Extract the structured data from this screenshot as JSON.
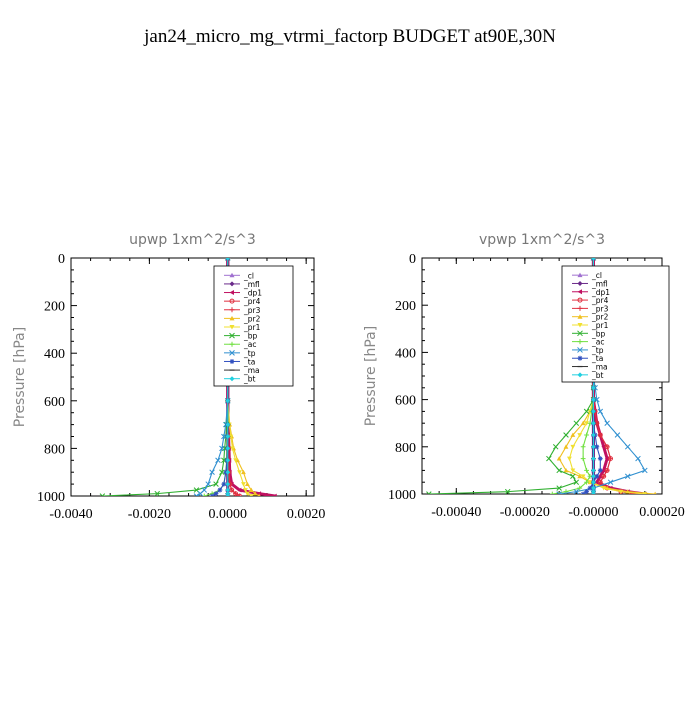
{
  "figure": {
    "title": "jan24_micro_mg_vtrmi_factorp  BUDGET at90E,30N"
  },
  "legend_entries": [
    {
      "label": "_cl",
      "color": "#a070d0",
      "marker": "triangle"
    },
    {
      "label": "_mfl",
      "color": "#6a2a8a",
      "marker": "diamond"
    },
    {
      "label": "_dp1",
      "color": "#c01060",
      "marker": "triangle-left"
    },
    {
      "label": "_pr4",
      "color": "#e03040",
      "marker": "circle"
    },
    {
      "label": "_pr3",
      "color": "#e03040",
      "marker": "plus"
    },
    {
      "label": "_pr2",
      "color": "#f0c020",
      "marker": "triangle"
    },
    {
      "label": "_pr1",
      "color": "#f0e030",
      "marker": "triangle-down"
    },
    {
      "label": "_bp",
      "color": "#30b030",
      "marker": "x"
    },
    {
      "label": "_ac",
      "color": "#70e040",
      "marker": "plus"
    },
    {
      "label": "_tp",
      "color": "#3090d0",
      "marker": "x"
    },
    {
      "label": "_ta",
      "color": "#3050c0",
      "marker": "star"
    },
    {
      "label": "_ma",
      "color": "#303030",
      "marker": "dash"
    },
    {
      "label": "_bt",
      "color": "#20d0e0",
      "marker": "diamond"
    }
  ],
  "chart_data": [
    {
      "type": "line",
      "title": "upwp   1xm^2/s^3",
      "ylabel": "Pressure  [hPa]",
      "xlabel": "",
      "xlim": [
        -0.004,
        0.0022
      ],
      "ylim": [
        1000,
        0
      ],
      "xticks": [
        -0.004,
        -0.002,
        0.0,
        0.002
      ],
      "xtick_labels": [
        "-0.0040",
        "-0.0020",
        "0.0000",
        "0.0020"
      ],
      "yticks": [
        0,
        200,
        400,
        600,
        800,
        1000
      ],
      "ytick_labels": [
        "0",
        "200",
        "400",
        "600",
        "800",
        "1000"
      ],
      "legend_position": "top-right",
      "y": [
        0,
        100,
        200,
        300,
        400,
        500,
        600,
        700,
        750,
        800,
        850,
        900,
        950,
        975,
        990,
        1000
      ],
      "series": [
        {
          "name": "_cl",
          "values": [
            0,
            0,
            0,
            0,
            0,
            0,
            0,
            0,
            0,
            0,
            0,
            0,
            0,
            0,
            0,
            0
          ]
        },
        {
          "name": "_mfl",
          "values": [
            0,
            0,
            0,
            0,
            0,
            0,
            0,
            0,
            0,
            0,
            0,
            0,
            0,
            0,
            0,
            0
          ]
        },
        {
          "name": "_dp1",
          "values": [
            0,
            0,
            0,
            0,
            0,
            0,
            0,
            1e-05,
            2e-05,
            3e-05,
            4e-05,
            5e-05,
            0.0001,
            0.0003,
            0.0008,
            0.0012
          ]
        },
        {
          "name": "_pr4",
          "values": [
            0,
            0,
            0,
            0,
            0,
            0,
            0,
            0,
            0,
            0,
            0,
            2e-05,
            5e-05,
            0.0001,
            0.0002,
            0.0003
          ]
        },
        {
          "name": "_pr3",
          "values": [
            0,
            0,
            0,
            0,
            0,
            0,
            0,
            0,
            0,
            0,
            1e-05,
            3e-05,
            6e-05,
            0.0001,
            0.0002,
            0.0003
          ]
        },
        {
          "name": "_pr2",
          "values": [
            0,
            0,
            0,
            0,
            0,
            0,
            0,
            5e-05,
            0.0001,
            0.00015,
            0.00025,
            0.0004,
            0.0005,
            0.0006,
            0.0007,
            0.0008
          ]
        },
        {
          "name": "_pr1",
          "values": [
            0,
            0,
            0,
            0,
            0,
            0,
            0,
            4e-05,
            8e-05,
            0.00012,
            0.0002,
            0.0003,
            0.0004,
            0.00045,
            0.0005,
            0.0006
          ]
        },
        {
          "name": "_bp",
          "values": [
            0,
            0,
            0,
            0,
            0,
            0,
            0,
            -3e-05,
            -5e-05,
            -8e-05,
            -0.0001,
            -0.00015,
            -0.0003,
            -0.0008,
            -0.0018,
            -0.0032
          ]
        },
        {
          "name": "_ac",
          "values": [
            0,
            0,
            0,
            0,
            0,
            0,
            0,
            0,
            -1e-05,
            -2e-05,
            -3e-05,
            -5e-05,
            -0.0001,
            -0.0002,
            -0.0004,
            -0.0006
          ]
        },
        {
          "name": "_tp",
          "values": [
            0,
            0,
            0,
            0,
            0,
            0,
            0,
            -5e-05,
            -0.0001,
            -0.00015,
            -0.00025,
            -0.0004,
            -0.0005,
            -0.0006,
            -0.0007,
            -0.0008
          ]
        },
        {
          "name": "_ta",
          "values": [
            0,
            0,
            0,
            0,
            0,
            0,
            0,
            0,
            0,
            -1e-05,
            -2e-05,
            -5e-05,
            -0.0001,
            -0.0002,
            -0.0003,
            -0.0004
          ]
        },
        {
          "name": "_ma",
          "values": [
            0,
            0,
            0,
            0,
            0,
            0,
            0,
            0,
            0,
            0,
            0,
            0,
            0,
            0,
            0,
            0
          ]
        },
        {
          "name": "_bt",
          "values": [
            0,
            0,
            0,
            0,
            0,
            0,
            0,
            0,
            0,
            0,
            0,
            0,
            0,
            0,
            0,
            0
          ]
        }
      ]
    },
    {
      "type": "line",
      "title": "vpwp   1xm^2/s^3",
      "ylabel": "Pressure  [hPa]",
      "xlabel": "",
      "xlim": [
        -0.0005,
        0.0002
      ],
      "ylim": [
        1000,
        0
      ],
      "xticks": [
        -0.0004,
        -0.0002,
        0.0,
        0.0002
      ],
      "xtick_labels": [
        "-0.00040",
        "-0.00020",
        "-0.00000",
        "0.00020"
      ],
      "yticks": [
        0,
        200,
        400,
        600,
        800,
        1000
      ],
      "ytick_labels": [
        "0",
        "200",
        "400",
        "600",
        "800",
        "1000"
      ],
      "legend_position": "top-right",
      "y": [
        0,
        100,
        200,
        300,
        400,
        500,
        550,
        600,
        650,
        700,
        750,
        800,
        850,
        900,
        925,
        950,
        975,
        990,
        1000
      ],
      "series": [
        {
          "name": "_cl",
          "values": [
            0,
            0,
            0,
            0,
            0,
            0,
            0,
            0,
            0,
            0,
            0,
            0,
            0,
            0,
            0,
            0,
            0,
            0,
            0
          ]
        },
        {
          "name": "_mfl",
          "values": [
            0,
            0,
            0,
            0,
            0,
            0,
            0,
            0,
            0,
            0,
            0,
            0,
            0,
            0,
            0,
            0,
            0,
            0,
            0
          ]
        },
        {
          "name": "_dp1",
          "values": [
            0,
            0,
            0,
            0,
            0,
            0,
            0,
            0,
            5e-06,
            1e-05,
            2e-05,
            3e-05,
            4e-05,
            3e-05,
            2e-05,
            1e-05,
            5e-05,
            0.0001,
            0.00015
          ]
        },
        {
          "name": "_pr4",
          "values": [
            0,
            0,
            0,
            0,
            0,
            0,
            0,
            0,
            5e-06,
            1e-05,
            2e-05,
            4e-05,
            5e-05,
            4e-05,
            3e-05,
            2e-05,
            4e-05,
            8e-05,
            0.00012
          ]
        },
        {
          "name": "_pr3",
          "values": [
            0,
            0,
            0,
            0,
            0,
            0,
            0,
            0,
            5e-06,
            1e-05,
            2e-05,
            4e-05,
            5e-05,
            4e-05,
            3e-05,
            2e-05,
            4e-05,
            8e-05,
            0.00012
          ]
        },
        {
          "name": "_pr2",
          "values": [
            0,
            0,
            0,
            0,
            0,
            0,
            0,
            0,
            -1e-05,
            -3e-05,
            -6e-05,
            -8e-05,
            -0.0001,
            -8e-05,
            -4e-05,
            -1e-05,
            4e-05,
            0.0001,
            0.00018
          ]
        },
        {
          "name": "_pr1",
          "values": [
            0,
            0,
            0,
            0,
            0,
            0,
            0,
            0,
            -1e-05,
            -2e-05,
            -4e-05,
            -6e-05,
            -7e-05,
            -6e-05,
            -3e-05,
            -1e-05,
            3e-05,
            8e-05,
            0.00015
          ]
        },
        {
          "name": "_bp",
          "values": [
            0,
            0,
            0,
            0,
            0,
            0,
            0,
            0,
            -2e-05,
            -5e-05,
            -8e-05,
            -0.00011,
            -0.00013,
            -0.0001,
            -6e-05,
            -5e-05,
            -0.0001,
            -0.00025,
            -0.00048
          ]
        },
        {
          "name": "_ac",
          "values": [
            0,
            0,
            0,
            0,
            0,
            0,
            0,
            0,
            -5e-06,
            -1e-05,
            -2e-05,
            -3e-05,
            -3e-05,
            -2e-05,
            -1e-05,
            -2e-05,
            -4e-05,
            -8e-05,
            -0.00012
          ]
        },
        {
          "name": "_tp",
          "values": [
            0,
            0,
            0,
            0,
            0,
            0,
            5e-06,
            1e-05,
            2e-05,
            4e-05,
            7e-05,
            0.0001,
            0.00013,
            0.00015,
            0.0001,
            5e-05,
            0,
            -5e-05,
            -0.0001
          ]
        },
        {
          "name": "_ta",
          "values": [
            0,
            0,
            0,
            0,
            0,
            0,
            0,
            0,
            0,
            0,
            5e-06,
            1e-05,
            2e-05,
            2e-05,
            1e-05,
            0,
            -1e-05,
            -2e-05,
            -3e-05
          ]
        },
        {
          "name": "_ma",
          "values": [
            0,
            0,
            0,
            0,
            0,
            0,
            0,
            0,
            0,
            0,
            0,
            0,
            0,
            0,
            0,
            0,
            0,
            0,
            0
          ]
        },
        {
          "name": "_bt",
          "values": [
            0,
            0,
            0,
            0,
            0,
            0,
            0,
            0,
            0,
            0,
            0,
            0,
            0,
            0,
            0,
            0,
            0,
            0,
            0
          ]
        }
      ]
    }
  ]
}
